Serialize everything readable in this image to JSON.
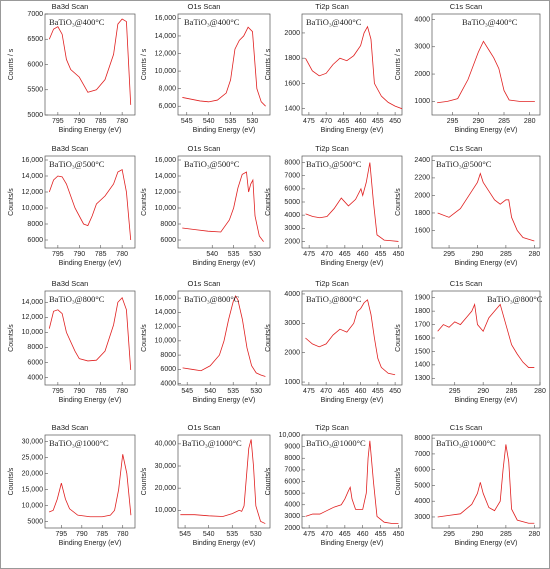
{
  "chart_data": [
    {
      "type": "line",
      "title": "Ba3d Scan",
      "annotation": "BaTiO₃@400°C",
      "xlabel": "Binding Energy (eV)",
      "ylabel": "Counts / s",
      "color": "#e02020",
      "xlim": [
        798,
        777
      ],
      "ylim": [
        5000,
        7000
      ],
      "xticks": [
        795,
        790,
        785,
        780
      ],
      "yticks": [
        5000,
        5500,
        6000,
        6500,
        7000
      ],
      "x": [
        797,
        796,
        795,
        794,
        793,
        792,
        790,
        788,
        786,
        784,
        782,
        781,
        780,
        779,
        778
      ],
      "values": [
        6500,
        6700,
        6750,
        6600,
        6100,
        5900,
        5750,
        5450,
        5500,
        5700,
        6200,
        6800,
        6900,
        6850,
        5200
      ]
    },
    {
      "type": "line",
      "title": "O1s Scan",
      "annotation": "BaTiO₃@400°C",
      "xlabel": "Binding Energy (eV)",
      "ylabel": "Counts / s",
      "color": "#e02020",
      "xlim": [
        547,
        526
      ],
      "ylim": [
        5000,
        16500
      ],
      "xticks": [
        545,
        540,
        535,
        530
      ],
      "yticks": [
        {
          "value": 6000,
          "label": "6,000"
        },
        {
          "value": 8000,
          "label": "8,000"
        },
        {
          "value": 10000,
          "label": "10,000"
        },
        {
          "value": 12000,
          "label": "12,000"
        },
        {
          "value": 14000,
          "label": "14,000"
        },
        {
          "value": 16000,
          "label": "16,000"
        }
      ],
      "x": [
        546,
        544,
        542,
        540,
        538,
        536,
        535,
        534,
        533,
        532,
        531,
        530,
        529,
        528,
        527
      ],
      "values": [
        7000,
        6800,
        6600,
        6500,
        6700,
        7500,
        9000,
        12500,
        13500,
        14000,
        15000,
        14500,
        8000,
        6500,
        6000
      ]
    },
    {
      "type": "line",
      "title": "Ti2p Scan",
      "annotation": "BaTiO₃@400°C",
      "xlabel": "Binding Energy (eV)",
      "ylabel": "Counts / s",
      "color": "#e02020",
      "xlim": [
        477,
        448
      ],
      "ylim": [
        1350,
        2150
      ],
      "xticks": [
        475,
        470,
        465,
        460,
        455,
        450
      ],
      "yticks": [
        1400,
        1600,
        1800,
        2000
      ],
      "x": [
        476,
        474,
        472,
        470,
        468,
        466,
        464,
        462,
        460,
        459,
        458,
        457,
        456,
        454,
        452,
        450,
        448
      ],
      "values": [
        1800,
        1700,
        1660,
        1680,
        1750,
        1800,
        1780,
        1820,
        1900,
        2000,
        2050,
        1950,
        1600,
        1500,
        1450,
        1420,
        1400
      ]
    },
    {
      "type": "line",
      "title": "C1s Scan",
      "annotation": "BaTiO₃@400°C",
      "xlabel": "Binding Energy (eV)",
      "ylabel": "Counts / s",
      "color": "#e02020",
      "xlim": [
        299,
        278
      ],
      "ylim": [
        500,
        4200
      ],
      "xticks": [
        295,
        290,
        285,
        280
      ],
      "yticks": [
        1000,
        2000,
        3000,
        4000
      ],
      "x": [
        298,
        296,
        294,
        292,
        290,
        289,
        288,
        287,
        286,
        285,
        284,
        282,
        280,
        279
      ],
      "values": [
        950,
        1000,
        1100,
        1800,
        2800,
        3200,
        2900,
        2600,
        2200,
        1400,
        1050,
        1000,
        1000,
        1000
      ]
    },
    {
      "type": "line",
      "title": "Ba3d Scan",
      "annotation": "BaTiO₃@500°C",
      "xlabel": "Binding Energy (eV)",
      "ylabel": "Counts/s",
      "color": "#e02020",
      "xlim": [
        798,
        777
      ],
      "ylim": [
        5000,
        16500
      ],
      "xticks": [
        795,
        790,
        785,
        780
      ],
      "yticks": [
        6000,
        8000,
        {
          "value": 10000,
          "label": "10,000"
        },
        {
          "value": 12000,
          "label": "12,000"
        },
        {
          "value": 14000,
          "label": "14,000"
        },
        {
          "value": 16000,
          "label": "16,000"
        }
      ],
      "x": [
        797,
        796,
        795,
        794,
        793,
        791,
        789,
        788,
        787,
        786,
        784,
        782,
        781,
        780,
        779,
        778
      ],
      "values": [
        12000,
        13500,
        14000,
        13900,
        13000,
        10000,
        8000,
        7800,
        9000,
        10500,
        11500,
        13000,
        14500,
        14800,
        12000,
        6000
      ]
    },
    {
      "type": "line",
      "title": "O1s Scan",
      "annotation": "BaTiO₃@500°C",
      "xlabel": "Binding Energy (eV)",
      "ylabel": "Counts/s",
      "color": "#e02020",
      "xlim": [
        548,
        526.5
      ],
      "ylim": [
        5000,
        16500
      ],
      "xticks": [
        540,
        535,
        530
      ],
      "yticks": [
        6000,
        8000,
        {
          "value": 10000,
          "label": "10,000"
        },
        {
          "value": 12000,
          "label": "12,000"
        },
        {
          "value": 14000,
          "label": "14,000"
        },
        {
          "value": 16000,
          "label": "16,000"
        }
      ],
      "x": [
        547,
        544,
        541,
        538,
        536,
        535,
        534,
        533,
        532,
        531.5,
        531,
        530.5,
        530,
        529,
        528
      ],
      "values": [
        7500,
        7300,
        7100,
        7000,
        8500,
        10000,
        12500,
        14200,
        14500,
        12000,
        13000,
        13500,
        9000,
        6500,
        5800
      ]
    },
    {
      "type": "line",
      "title": "Ti2p Scan",
      "annotation": "BaTiO₃@500°C",
      "xlabel": "Binding Energy (eV)",
      "ylabel": "Counts/s",
      "color": "#e02020",
      "xlim": [
        477,
        449
      ],
      "ylim": [
        1500,
        8500
      ],
      "xticks": [
        475,
        470,
        465,
        460,
        455,
        450
      ],
      "yticks": [
        2000,
        3000,
        4000,
        5000,
        6000,
        7000,
        8000
      ],
      "x": [
        476,
        474,
        472,
        470,
        468,
        466,
        464,
        462,
        460.5,
        460,
        459,
        458,
        457,
        456,
        454,
        452,
        450
      ],
      "values": [
        4100,
        3900,
        3800,
        3900,
        4500,
        5300,
        4700,
        5200,
        6000,
        5500,
        6500,
        8000,
        5000,
        2500,
        2100,
        2050,
        2000
      ]
    },
    {
      "type": "line",
      "title": "C1s Scan",
      "annotation": "BaTiO₃@500°C",
      "xlabel": "Binding Energy (eV)",
      "ylabel": "Counts/s",
      "color": "#e02020",
      "xlim": [
        298,
        279
      ],
      "ylim": [
        1400,
        2450
      ],
      "xticks": [
        295,
        290,
        285,
        280
      ],
      "yticks": [
        1600,
        1800,
        2000,
        2200,
        2400
      ],
      "x": [
        297,
        295,
        293,
        292,
        291,
        290,
        289.5,
        289,
        288,
        287,
        286,
        285,
        284.5,
        284,
        283,
        282,
        281,
        280
      ],
      "values": [
        1800,
        1750,
        1850,
        1950,
        2050,
        2150,
        2250,
        2150,
        2050,
        1950,
        1900,
        1950,
        1950,
        1750,
        1600,
        1520,
        1500,
        1480
      ]
    },
    {
      "type": "line",
      "title": "Ba3d Scan",
      "annotation": "BaTiO₃@800°C",
      "xlabel": "Binding Energy (eV)",
      "ylabel": "Counts/s",
      "color": "#e02020",
      "xlim": [
        798,
        777
      ],
      "ylim": [
        3000,
        15500
      ],
      "xticks": [
        795,
        790,
        785,
        780
      ],
      "yticks": [
        4000,
        6000,
        8000,
        {
          "value": 10000,
          "label": "10,000"
        },
        {
          "value": 12000,
          "label": "12,000"
        },
        {
          "value": 14000,
          "label": "14,000"
        }
      ],
      "x": [
        797,
        796,
        795,
        794,
        793,
        791,
        790,
        788,
        786,
        784,
        782,
        781,
        780,
        779,
        778
      ],
      "values": [
        10500,
        12800,
        13000,
        12500,
        10000,
        7500,
        6500,
        6200,
        6300,
        7500,
        11000,
        14000,
        14600,
        13000,
        5000
      ]
    },
    {
      "type": "line",
      "title": "O1s Scan",
      "annotation": "BaTiO₃@800°C",
      "xlabel": "Binding Energy (eV)",
      "ylabel": "Counts/s",
      "color": "#e02020",
      "xlim": [
        547,
        527
      ],
      "ylim": [
        3800,
        17000
      ],
      "xticks": [
        545,
        540,
        535,
        530
      ],
      "yticks": [
        4000,
        6000,
        8000,
        {
          "value": 10000,
          "label": "10,000"
        },
        {
          "value": 12000,
          "label": "12,000"
        },
        {
          "value": 14000,
          "label": "14,000"
        },
        {
          "value": 16000,
          "label": "16,000"
        }
      ],
      "x": [
        546,
        544,
        542,
        540,
        538,
        537,
        536,
        535,
        534.5,
        534,
        533,
        532,
        531,
        530,
        529,
        528
      ],
      "values": [
        6200,
        6000,
        5800,
        6500,
        8000,
        10000,
        13000,
        15500,
        16300,
        15800,
        13000,
        9000,
        6500,
        5500,
        5200,
        5000
      ]
    },
    {
      "type": "line",
      "title": "Ti2p Scan",
      "annotation": "BaTiO₃@800°C",
      "xlabel": "Binding Energy (eV)",
      "ylabel": "Counts/s",
      "color": "#e02020",
      "xlim": [
        477,
        448
      ],
      "ylim": [
        900,
        4100
      ],
      "xticks": [
        475,
        470,
        465,
        460,
        455,
        450
      ],
      "yticks": [
        1000,
        2000,
        3000,
        4000
      ],
      "x": [
        476,
        474,
        472,
        470,
        468,
        466,
        464,
        462,
        461,
        460,
        459,
        458,
        457,
        456,
        455,
        454,
        452,
        450
      ],
      "values": [
        2500,
        2300,
        2200,
        2300,
        2600,
        2800,
        2700,
        3000,
        3400,
        3500,
        3700,
        3800,
        3300,
        2500,
        1800,
        1500,
        1300,
        1250
      ]
    },
    {
      "type": "line",
      "title": "C1s Scan",
      "annotation": "BaTiO₃@800°C",
      "xlabel": "Binding Energy (eV)",
      "ylabel": "Counts/s",
      "color": "#e02020",
      "xlim": [
        299,
        280
      ],
      "ylim": [
        1250,
        1950
      ],
      "xticks": [
        295,
        290,
        285,
        280
      ],
      "yticks": [
        1300,
        1400,
        1500,
        1600,
        1700,
        1800,
        1900
      ],
      "x": [
        298,
        297,
        296,
        295,
        294,
        293,
        292,
        291.5,
        291,
        290,
        289,
        288,
        287,
        286,
        285,
        284,
        283,
        282,
        281
      ],
      "values": [
        1650,
        1700,
        1680,
        1720,
        1700,
        1750,
        1800,
        1850,
        1700,
        1650,
        1750,
        1800,
        1850,
        1700,
        1550,
        1480,
        1420,
        1380,
        1380
      ]
    },
    {
      "type": "line",
      "title": "Ba3d Scan",
      "annotation": "BaTiO₃@1000°C",
      "xlabel": "Binding Energy (eV)",
      "ylabel": "Counts/s",
      "color": "#e02020",
      "xlim": [
        799,
        777
      ],
      "ylim": [
        3000,
        32000
      ],
      "xticks": [
        795,
        790,
        785,
        780
      ],
      "yticks": [
        5000,
        {
          "value": 10000,
          "label": "10,000"
        },
        {
          "value": 15000,
          "label": "15,000"
        },
        {
          "value": 20000,
          "label": "20,000"
        },
        {
          "value": 25000,
          "label": "25,000"
        },
        {
          "value": 30000,
          "label": "30,000"
        }
      ],
      "x": [
        798,
        797,
        796,
        795,
        794,
        793,
        791,
        788,
        785,
        783,
        782,
        781,
        780,
        779,
        778
      ],
      "values": [
        8000,
        8500,
        12000,
        17000,
        12000,
        9000,
        7000,
        6500,
        6500,
        7000,
        8500,
        15000,
        26000,
        20000,
        7000
      ]
    },
    {
      "type": "line",
      "title": "O1s Scan",
      "annotation": "BaTiO₃@1000°C",
      "xlabel": "Binding Energy (eV)",
      "ylabel": "Counts/s",
      "color": "#e02020",
      "xlim": [
        546.5,
        527
      ],
      "ylim": [
        2000,
        44000
      ],
      "xticks": [
        545,
        540,
        535,
        530
      ],
      "yticks": [
        {
          "value": 10000,
          "label": "10,000"
        },
        {
          "value": 20000,
          "label": "20,000"
        },
        {
          "value": 30000,
          "label": "30,000"
        },
        {
          "value": 40000,
          "label": "40,000"
        }
      ],
      "x": [
        546,
        543,
        540,
        537,
        535,
        534,
        533.5,
        533,
        532.5,
        532,
        531.5,
        531,
        530.5,
        530,
        529,
        528
      ],
      "values": [
        8000,
        8000,
        7500,
        7200,
        8500,
        9500,
        10000,
        9500,
        12000,
        25000,
        38000,
        42000,
        30000,
        12000,
        5000,
        4000
      ]
    },
    {
      "type": "line",
      "title": "Ti2p Scan",
      "annotation": "BaTiO₃@1000°C",
      "xlabel": "Binding Energy (eV)",
      "ylabel": "Counts/s",
      "color": "#e02020",
      "xlim": [
        477,
        449
      ],
      "ylim": [
        2000,
        10000
      ],
      "xticks": [
        475,
        470,
        465,
        460,
        455,
        450
      ],
      "yticks": [
        2000,
        3000,
        4000,
        5000,
        6000,
        7000,
        8000,
        9000,
        {
          "value": 10000,
          "label": "10,000"
        }
      ],
      "x": [
        476,
        474,
        472,
        470,
        468,
        466,
        465,
        464,
        463.5,
        463,
        462,
        460,
        459,
        458.5,
        458,
        457,
        456,
        454,
        452,
        450
      ],
      "values": [
        3000,
        3200,
        3200,
        3500,
        3800,
        4000,
        4500,
        5200,
        5500,
        4500,
        3600,
        3600,
        5000,
        8000,
        9500,
        6000,
        3000,
        2500,
        2400,
        2400
      ]
    },
    {
      "type": "line",
      "title": "C1s Scan",
      "annotation": "BaTiO₃@1000°C",
      "xlabel": "Binding Energy (eV)",
      "ylabel": "Counts/s",
      "color": "#e02020",
      "xlim": [
        298,
        279
      ],
      "ylim": [
        2300,
        8200
      ],
      "xticks": [
        295,
        290,
        285,
        280
      ],
      "yticks": [
        3000,
        4000,
        5000,
        6000,
        7000,
        8000
      ],
      "x": [
        297,
        295,
        293,
        292,
        291,
        290,
        289.5,
        289,
        288,
        287,
        286,
        285.5,
        285,
        284.5,
        284,
        283,
        281,
        280
      ],
      "values": [
        3000,
        3100,
        3200,
        3500,
        3800,
        4500,
        5200,
        4500,
        3600,
        3400,
        4000,
        6000,
        7600,
        6500,
        3500,
        2800,
        2600,
        2600
      ]
    }
  ]
}
